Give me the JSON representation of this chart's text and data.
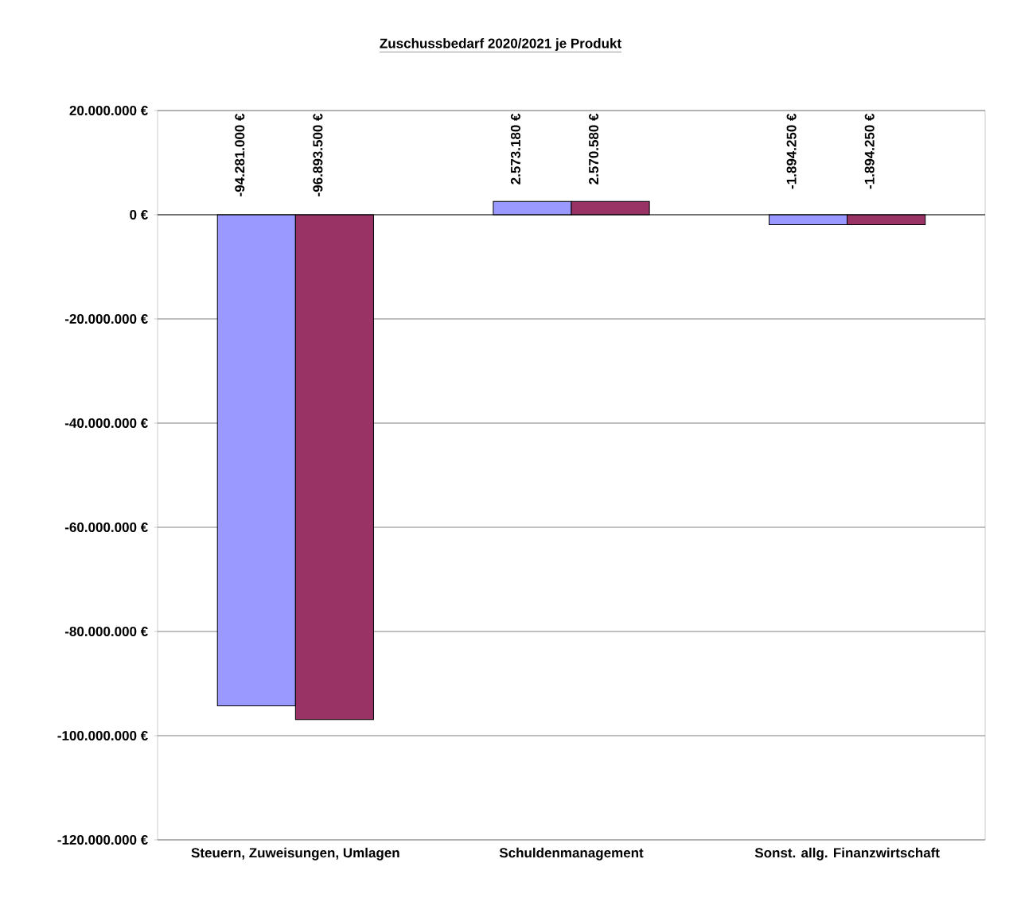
{
  "chart_data": {
    "type": "bar",
    "title": "Zuschussbedarf 2020/2021 je Produkt",
    "categories": [
      "Steuern, Zuweisungen, Umlagen",
      "Schuldenmanagement",
      "Sonst. allg. Finanzwirtschaft"
    ],
    "series": [
      {
        "color": "#9999ff",
        "values": [
          -94281000,
          2573180,
          -1894250
        ],
        "value_labels": [
          "-94.281.000 €",
          "2.573.180 €",
          "-1.894.250 €"
        ]
      },
      {
        "color": "#993366",
        "values": [
          -96893500,
          2570580,
          -1894250
        ],
        "value_labels": [
          "-96.893.500 €",
          "2.570.580 €",
          "-1.894.250 €"
        ]
      }
    ],
    "ylim": [
      -120000000,
      20000000
    ],
    "yticks": [
      {
        "value": 20000000,
        "label": "20.000.000 €"
      },
      {
        "value": 0,
        "label": "0 €"
      },
      {
        "value": -20000000,
        "label": "-20.000.000 €"
      },
      {
        "value": -40000000,
        "label": "-40.000.000 €"
      },
      {
        "value": -60000000,
        "label": "-60.000.000 €"
      },
      {
        "value": -80000000,
        "label": "-80.000.000 €"
      },
      {
        "value": -100000000,
        "label": "-100.000.000 €"
      },
      {
        "value": -120000000,
        "label": "-120.000.000 €"
      }
    ],
    "grid": "y"
  }
}
